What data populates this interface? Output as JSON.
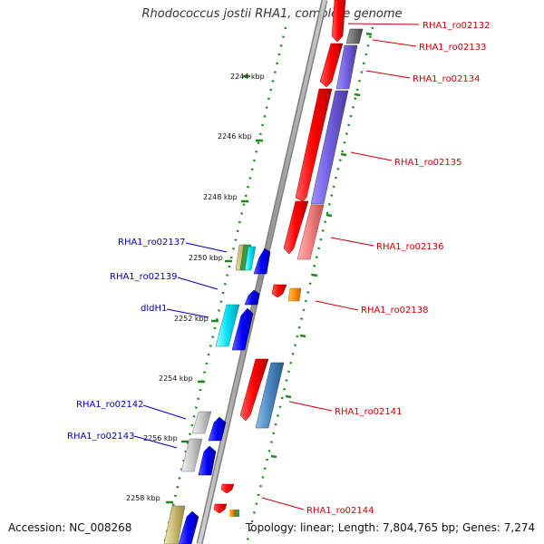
{
  "map": {
    "title": "Rhodococcus jostii RHA1, complete genome",
    "accession_label": "Accession: NC_008268",
    "topology_label": "Topology: linear; Length: 7,804,765 bp; Genes: 7,274"
  },
  "ticks": [
    {
      "label": "2244 kbp"
    },
    {
      "label": "2246 kbp"
    },
    {
      "label": "2248 kbp"
    },
    {
      "label": "2250 kbp"
    },
    {
      "label": "2252 kbp"
    },
    {
      "label": "2254 kbp"
    },
    {
      "label": "2256 kbp"
    },
    {
      "label": "2258 kbp"
    }
  ],
  "genes_right": [
    {
      "label": "RHA1_ro02132",
      "color": "#cc0000"
    },
    {
      "label": "RHA1_ro02133",
      "color": "#cc0000"
    },
    {
      "label": "RHA1_ro02134",
      "color": "#cc0000"
    },
    {
      "label": "RHA1_ro02135",
      "color": "#cc0000"
    },
    {
      "label": "RHA1_ro02136",
      "color": "#cc0000"
    },
    {
      "label": "RHA1_ro02138",
      "color": "#cc0000"
    },
    {
      "label": "RHA1_ro02141",
      "color": "#cc0000"
    },
    {
      "label": "RHA1_ro02144",
      "color": "#cc0000"
    }
  ],
  "genes_left": [
    {
      "label": "RHA1_ro02137",
      "color": "#0000bb"
    },
    {
      "label": "RHA1_ro02139",
      "color": "#0000bb"
    },
    {
      "label": "dldH1",
      "color": "#0000bb"
    },
    {
      "label": "RHA1_ro02142",
      "color": "#0000bb"
    },
    {
      "label": "RHA1_ro02143",
      "color": "#0000bb"
    }
  ]
}
